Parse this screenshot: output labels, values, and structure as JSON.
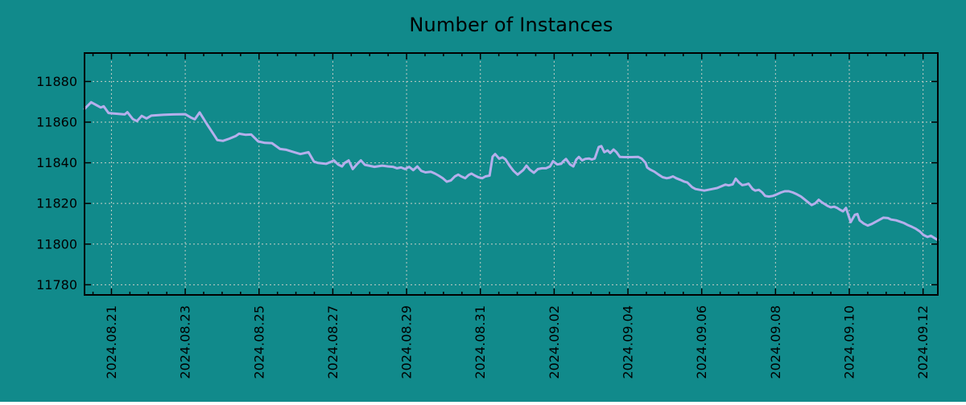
{
  "chart_data": {
    "type": "line",
    "title": "Number of Instances",
    "legend": "none",
    "grid": true,
    "colors": {
      "background": "#118a8b",
      "line": "#b5afec",
      "grid": "#c3cdc6",
      "axis": "#000000",
      "text": "#000000"
    },
    "x_axis": {
      "label": "",
      "tick_labels": [
        "2024.08.21",
        "2024.08.23",
        "2024.08.25",
        "2024.08.27",
        "2024.08.29",
        "2024.08.31",
        "2024.09.02",
        "2024.09.04",
        "2024.09.06",
        "2024.09.08",
        "2024.09.10",
        "2024.09.12"
      ],
      "tick_positions_days": [
        0,
        2,
        4,
        6,
        8,
        10,
        12,
        14,
        16,
        18,
        20,
        22
      ],
      "minor_tick_interval_days": 0.5,
      "range_days": [
        -0.73,
        22.4
      ]
    },
    "y_axis": {
      "label": "",
      "ticks": [
        11780,
        11800,
        11820,
        11840,
        11860,
        11880
      ],
      "range": [
        11775,
        11894
      ]
    },
    "series": [
      {
        "name": "Number of Instances",
        "points_days_value": [
          [
            -0.73,
            11866.5
          ],
          [
            -0.55,
            11869.8
          ],
          [
            -0.4,
            11868.3
          ],
          [
            -0.29,
            11867.2
          ],
          [
            -0.21,
            11867.8
          ],
          [
            -0.08,
            11864.5
          ],
          [
            0.03,
            11864.3
          ],
          [
            0.36,
            11863.8
          ],
          [
            0.43,
            11864.9
          ],
          [
            0.58,
            11861.5
          ],
          [
            0.69,
            11860.5
          ],
          [
            0.82,
            11863.1
          ],
          [
            0.95,
            11861.8
          ],
          [
            1.08,
            11863.2
          ],
          [
            1.4,
            11863.6
          ],
          [
            1.67,
            11863.8
          ],
          [
            2.0,
            11863.9
          ],
          [
            2.15,
            11862.3
          ],
          [
            2.26,
            11861.4
          ],
          [
            2.39,
            11864.8
          ],
          [
            2.59,
            11859.0
          ],
          [
            2.78,
            11853.7
          ],
          [
            2.87,
            11851.2
          ],
          [
            3.02,
            11850.8
          ],
          [
            3.2,
            11851.9
          ],
          [
            3.37,
            11853.2
          ],
          [
            3.46,
            11854.3
          ],
          [
            3.63,
            11853.8
          ],
          [
            3.79,
            11853.9
          ],
          [
            3.98,
            11850.5
          ],
          [
            4.16,
            11849.8
          ],
          [
            4.35,
            11849.7
          ],
          [
            4.57,
            11846.8
          ],
          [
            4.74,
            11846.4
          ],
          [
            4.9,
            11845.5
          ],
          [
            5.12,
            11844.3
          ],
          [
            5.34,
            11845.2
          ],
          [
            5.49,
            11840.6
          ],
          [
            5.6,
            11839.9
          ],
          [
            5.82,
            11839.5
          ],
          [
            5.93,
            11840.3
          ],
          [
            6.03,
            11841.2
          ],
          [
            6.14,
            11839.2
          ],
          [
            6.25,
            11838.2
          ],
          [
            6.32,
            11839.9
          ],
          [
            6.43,
            11841.2
          ],
          [
            6.54,
            11836.9
          ],
          [
            6.65,
            11839.2
          ],
          [
            6.76,
            11841.2
          ],
          [
            6.87,
            11839.0
          ],
          [
            6.98,
            11838.6
          ],
          [
            7.13,
            11838.0
          ],
          [
            7.34,
            11838.6
          ],
          [
            7.5,
            11838.2
          ],
          [
            7.63,
            11838.0
          ],
          [
            7.74,
            11837.3
          ],
          [
            7.85,
            11837.7
          ],
          [
            7.96,
            11836.9
          ],
          [
            8.07,
            11838.0
          ],
          [
            8.18,
            11836.4
          ],
          [
            8.29,
            11838.2
          ],
          [
            8.4,
            11836.0
          ],
          [
            8.51,
            11835.3
          ],
          [
            8.66,
            11835.6
          ],
          [
            8.77,
            11834.7
          ],
          [
            8.87,
            11833.7
          ],
          [
            8.98,
            11832.4
          ],
          [
            9.09,
            11830.7
          ],
          [
            9.2,
            11831.3
          ],
          [
            9.31,
            11833.3
          ],
          [
            9.4,
            11834.2
          ],
          [
            9.48,
            11833.3
          ],
          [
            9.59,
            11832.4
          ],
          [
            9.68,
            11834.0
          ],
          [
            9.76,
            11834.7
          ],
          [
            9.85,
            11833.7
          ],
          [
            9.94,
            11832.9
          ],
          [
            10.05,
            11832.4
          ],
          [
            10.14,
            11833.3
          ],
          [
            10.25,
            11833.7
          ],
          [
            10.33,
            11843.0
          ],
          [
            10.4,
            11844.3
          ],
          [
            10.51,
            11842.0
          ],
          [
            10.6,
            11842.7
          ],
          [
            10.68,
            11841.7
          ],
          [
            10.79,
            11838.6
          ],
          [
            10.9,
            11836.0
          ],
          [
            11.01,
            11834.2
          ],
          [
            11.16,
            11836.4
          ],
          [
            11.25,
            11838.6
          ],
          [
            11.34,
            11836.6
          ],
          [
            11.45,
            11835.1
          ],
          [
            11.56,
            11836.9
          ],
          [
            11.67,
            11837.3
          ],
          [
            11.78,
            11837.3
          ],
          [
            11.89,
            11838.2
          ],
          [
            11.97,
            11840.8
          ],
          [
            12.08,
            11839.2
          ],
          [
            12.19,
            11839.5
          ],
          [
            12.25,
            11840.8
          ],
          [
            12.32,
            11841.9
          ],
          [
            12.43,
            11839.2
          ],
          [
            12.52,
            11838.2
          ],
          [
            12.6,
            11841.6
          ],
          [
            12.67,
            11842.9
          ],
          [
            12.76,
            11841.2
          ],
          [
            12.84,
            11841.9
          ],
          [
            12.95,
            11842.1
          ],
          [
            13.02,
            11841.6
          ],
          [
            13.1,
            11842.1
          ],
          [
            13.21,
            11847.8
          ],
          [
            13.28,
            11848.2
          ],
          [
            13.36,
            11845.2
          ],
          [
            13.45,
            11846.1
          ],
          [
            13.52,
            11844.8
          ],
          [
            13.61,
            11846.5
          ],
          [
            13.69,
            11845.2
          ],
          [
            13.78,
            11842.9
          ],
          [
            13.89,
            11842.8
          ],
          [
            14.11,
            11842.8
          ],
          [
            14.28,
            11842.9
          ],
          [
            14.37,
            11842.1
          ],
          [
            14.48,
            11839.9
          ],
          [
            14.52,
            11837.7
          ],
          [
            14.61,
            11836.6
          ],
          [
            14.72,
            11835.6
          ],
          [
            14.83,
            11834.2
          ],
          [
            14.94,
            11832.9
          ],
          [
            15.05,
            11832.4
          ],
          [
            15.13,
            11832.7
          ],
          [
            15.22,
            11833.3
          ],
          [
            15.31,
            11832.4
          ],
          [
            15.42,
            11831.6
          ],
          [
            15.53,
            11830.7
          ],
          [
            15.61,
            11830.3
          ],
          [
            15.74,
            11828.0
          ],
          [
            15.83,
            11827.1
          ],
          [
            15.94,
            11826.7
          ],
          [
            16.07,
            11826.3
          ],
          [
            16.18,
            11826.7
          ],
          [
            16.29,
            11827.1
          ],
          [
            16.42,
            11827.6
          ],
          [
            16.53,
            11828.4
          ],
          [
            16.64,
            11829.3
          ],
          [
            16.73,
            11828.9
          ],
          [
            16.84,
            11829.4
          ],
          [
            16.92,
            11832.2
          ],
          [
            17.01,
            11830.3
          ],
          [
            17.1,
            11829.0
          ],
          [
            17.19,
            11829.3
          ],
          [
            17.27,
            11829.7
          ],
          [
            17.38,
            11827.1
          ],
          [
            17.45,
            11826.3
          ],
          [
            17.55,
            11826.7
          ],
          [
            17.64,
            11825.4
          ],
          [
            17.72,
            11823.7
          ],
          [
            17.82,
            11823.4
          ],
          [
            17.93,
            11823.7
          ],
          [
            18.04,
            11824.5
          ],
          [
            18.15,
            11825.4
          ],
          [
            18.25,
            11826.0
          ],
          [
            18.36,
            11826.0
          ],
          [
            18.47,
            11825.4
          ],
          [
            18.58,
            11824.5
          ],
          [
            18.69,
            11823.4
          ],
          [
            18.8,
            11821.8
          ],
          [
            18.89,
            11820.5
          ],
          [
            18.98,
            11819.2
          ],
          [
            19.08,
            11820.1
          ],
          [
            19.17,
            11821.8
          ],
          [
            19.24,
            11820.8
          ],
          [
            19.33,
            11819.7
          ],
          [
            19.41,
            11818.8
          ],
          [
            19.5,
            11818.1
          ],
          [
            19.59,
            11818.4
          ],
          [
            19.67,
            11817.8
          ],
          [
            19.74,
            11817.0
          ],
          [
            19.83,
            11816.1
          ],
          [
            19.91,
            11817.8
          ],
          [
            20.04,
            11810.8
          ],
          [
            20.15,
            11814.4
          ],
          [
            20.22,
            11814.8
          ],
          [
            20.28,
            11811.7
          ],
          [
            20.39,
            11810.1
          ],
          [
            20.5,
            11809.1
          ],
          [
            20.61,
            11809.9
          ],
          [
            20.7,
            11810.8
          ],
          [
            20.83,
            11812.1
          ],
          [
            20.92,
            11813.0
          ],
          [
            21.05,
            11812.8
          ],
          [
            21.13,
            11812.1
          ],
          [
            21.27,
            11811.7
          ],
          [
            21.35,
            11811.2
          ],
          [
            21.48,
            11810.4
          ],
          [
            21.57,
            11809.5
          ],
          [
            21.7,
            11808.5
          ],
          [
            21.79,
            11807.7
          ],
          [
            21.92,
            11806.1
          ],
          [
            22.01,
            11804.5
          ],
          [
            22.12,
            11803.5
          ],
          [
            22.21,
            11804.1
          ],
          [
            22.29,
            11803.2
          ],
          [
            22.4,
            11802.0
          ]
        ]
      }
    ]
  }
}
